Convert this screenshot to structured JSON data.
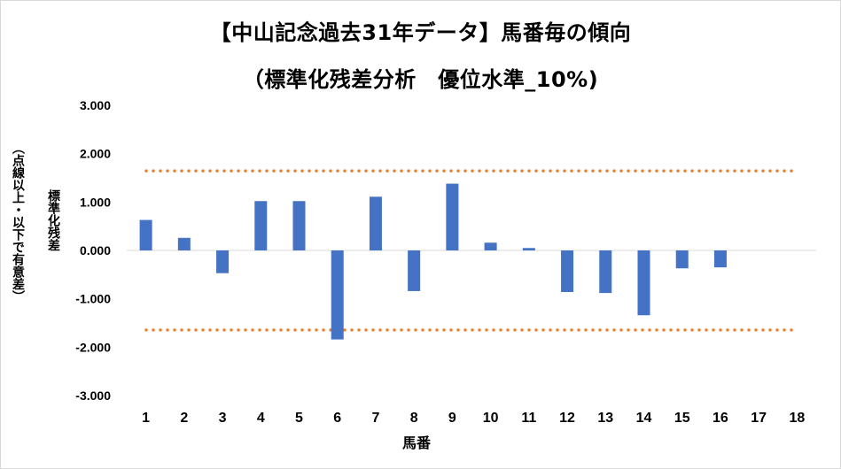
{
  "title_line1": "【中山記念過去31年データ】馬番毎の傾向",
  "title_line2": "（標準化残差分析　優位水準_10%)",
  "chart_data": {
    "type": "bar",
    "title": "【中山記念過去31年データ】馬番毎の傾向（標準化残差分析　優位水準_10%)",
    "xlabel": "馬番",
    "ylabel_primary": "標準化残差",
    "ylabel_secondary": "（点線以上・以下で有意差）",
    "categories": [
      "1",
      "2",
      "3",
      "4",
      "5",
      "6",
      "7",
      "8",
      "9",
      "10",
      "11",
      "12",
      "13",
      "14",
      "15",
      "16",
      "17",
      "18"
    ],
    "values": [
      0.63,
      0.26,
      -0.47,
      1.02,
      1.02,
      -1.84,
      1.11,
      -0.84,
      1.38,
      0.16,
      0.05,
      -0.86,
      -0.88,
      -1.34,
      -0.37,
      -0.35,
      null,
      null
    ],
    "ylim": [
      -3,
      3
    ],
    "yticks": [
      "3.000",
      "2.000",
      "1.000",
      "0.000",
      "-1.000",
      "-2.000",
      "-3.000"
    ],
    "ytick_values": [
      3,
      2,
      1,
      0,
      -1,
      -2,
      -3
    ],
    "threshold_lines": [
      1.645,
      -1.645
    ],
    "bar_color": "#4472c4",
    "threshold_color": "#ed7d31",
    "grid": false
  }
}
